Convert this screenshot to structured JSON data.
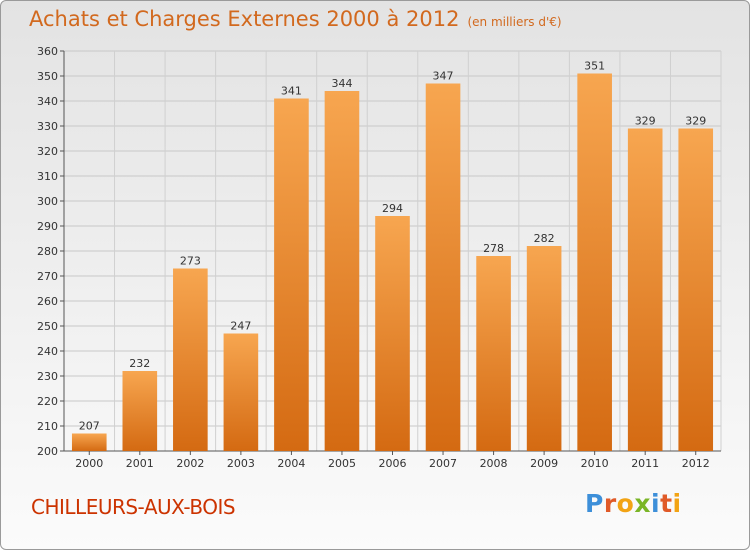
{
  "header": {
    "title": "Achats et Charges Externes 2000 à 2012",
    "unit_note": "(en milliers d'€)"
  },
  "footer": {
    "commune": "CHILLEURS-AUX-BOIS",
    "logo_text": "Proxiti"
  },
  "colors": {
    "bar_light": "#f7a650",
    "bar_dark": "#d46a12",
    "title": "#d2691e",
    "commune": "#cc3300"
  },
  "chart_data": {
    "type": "bar",
    "categories": [
      "2000",
      "2001",
      "2002",
      "2003",
      "2004",
      "2005",
      "2006",
      "2007",
      "2008",
      "2009",
      "2010",
      "2011",
      "2012"
    ],
    "values": [
      207,
      232,
      273,
      247,
      341,
      344,
      294,
      347,
      278,
      282,
      351,
      329,
      329
    ],
    "ylim": [
      200,
      360
    ],
    "yticks": [
      200,
      210,
      220,
      230,
      240,
      250,
      260,
      270,
      280,
      290,
      300,
      310,
      320,
      330,
      340,
      350,
      360
    ],
    "grid": true,
    "data_labels": true
  }
}
